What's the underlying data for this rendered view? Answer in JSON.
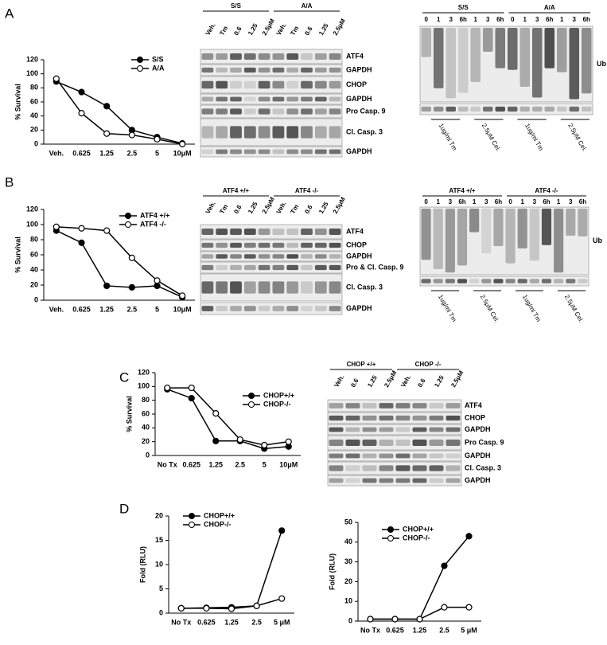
{
  "panel_labels": [
    "A",
    "B",
    "C",
    "D"
  ],
  "chart_data": [
    {
      "type": "line",
      "ylabel": "% Survival",
      "categories": [
        "Veh.",
        "0.625",
        "1.25",
        "2.5",
        "5",
        "10μM"
      ],
      "series": [
        {
          "name": "S/S",
          "color": "#000000",
          "marker_fill": "#000000",
          "values": [
            89,
            74,
            54,
            20,
            10,
            1
          ]
        },
        {
          "name": "A/A",
          "color": "#000000",
          "marker_fill": "#ffffff",
          "values": [
            93,
            44,
            15,
            13,
            7,
            0
          ]
        }
      ],
      "ylim": [
        0,
        120
      ],
      "yticks": [
        0,
        20,
        40,
        60,
        80,
        100,
        120
      ]
    },
    {
      "type": "line",
      "ylabel": "% Survival",
      "categories": [
        "Veh.",
        "0.625",
        "1.25",
        "2.5",
        "5",
        "10μM"
      ],
      "series": [
        {
          "name": "ATF4 +/+",
          "color": "#000000",
          "marker_fill": "#000000",
          "values": [
            92,
            76,
            19,
            17,
            19,
            4
          ]
        },
        {
          "name": "ATF4 -/-",
          "color": "#000000",
          "marker_fill": "#ffffff",
          "values": [
            97,
            95,
            92,
            56,
            26,
            6
          ]
        }
      ],
      "ylim": [
        0,
        120
      ],
      "yticks": [
        0,
        20,
        40,
        60,
        80,
        100,
        120
      ]
    },
    {
      "type": "line",
      "ylabel": "% Survival",
      "categories": [
        "No Tx",
        "0.625",
        "1.25",
        "2.5",
        "5",
        "10μM"
      ],
      "series": [
        {
          "name": "CHOP+/+",
          "color": "#000000",
          "marker_fill": "#000000",
          "values": [
            96,
            83,
            21,
            21,
            10,
            13
          ]
        },
        {
          "name": "CHOP-/-",
          "color": "#000000",
          "marker_fill": "#ffffff",
          "values": [
            98,
            98,
            61,
            23,
            15,
            20
          ]
        }
      ],
      "ylim": [
        0,
        120
      ],
      "yticks": [
        0,
        20,
        40,
        60,
        80,
        100,
        120
      ]
    },
    {
      "type": "line",
      "ylabel": "Fold (RLU)",
      "categories": [
        "No Tx",
        "0.625",
        "1.25",
        "2.5",
        "5 μM"
      ],
      "series": [
        {
          "name": "CHOP+/+",
          "color": "#000000",
          "marker_fill": "#000000",
          "values": [
            1,
            1.1,
            1.2,
            1.5,
            17
          ]
        },
        {
          "name": "CHOP-/-",
          "color": "#000000",
          "marker_fill": "#ffffff",
          "values": [
            1,
            1,
            0.9,
            1.5,
            3
          ]
        }
      ],
      "ylim": [
        0,
        20
      ],
      "yticks": [
        0,
        5,
        10,
        15,
        20
      ]
    },
    {
      "type": "line",
      "ylabel": "Fold (RLU)",
      "categories": [
        "No Tx",
        "0.625",
        "1.25",
        "2.5",
        "5 μM"
      ],
      "series": [
        {
          "name": "CHOP+/+",
          "color": "#000000",
          "marker_fill": "#000000",
          "values": [
            1,
            1,
            1,
            28,
            43
          ]
        },
        {
          "name": "CHOP-/-",
          "color": "#000000",
          "marker_fill": "#ffffff",
          "values": [
            1,
            1,
            1,
            7,
            7
          ]
        }
      ],
      "ylim": [
        0,
        50
      ],
      "yticks": [
        0,
        10,
        20,
        30,
        40,
        50
      ]
    }
  ],
  "blots": [
    {
      "groups": [
        "S/S",
        "A/A"
      ],
      "lanes": [
        [
          "Veh.",
          "Tm",
          "0.6",
          "1.25",
          "2.5μM"
        ],
        [
          "Veh.",
          "Tm",
          "0.6",
          "1.25",
          "2.5μM"
        ]
      ],
      "rows": [
        "ATF4",
        "GAPDH",
        "CHOP",
        "GAPDH",
        "Pro Casp. 9",
        "Cl. Casp. 3",
        "GAPDH"
      ]
    },
    {
      "groups": [
        "S/S",
        "A/A"
      ],
      "lanes": [
        [
          "0",
          "1",
          "3",
          "6h",
          "1",
          "3",
          "6h"
        ],
        [
          "0",
          "1",
          "3",
          "6h",
          "1",
          "3",
          "6h"
        ]
      ],
      "rows": [
        "Ub"
      ],
      "treatments": [
        "1ug/ml Tm",
        "2.5μM Cel.",
        "1ug/ml Tm",
        "2.5μM Cel."
      ]
    },
    {
      "groups": [
        "ATF4 +/+",
        "ATF4 -/-"
      ],
      "lanes": [
        [
          "Veh.",
          "Tm",
          "0.6",
          "1.25",
          "2.5μM"
        ],
        [
          "Veh.",
          "Tm",
          "0.6",
          "1.25",
          "2.5μM"
        ]
      ],
      "rows": [
        "ATF4",
        "CHOP",
        "GAPDH",
        "Pro & Cl. Casp. 9",
        "Cl. Casp. 3",
        "GAPDH"
      ]
    },
    {
      "groups": [
        "ATF4 +/+",
        "ATF4 -/-"
      ],
      "lanes": [
        [
          "0",
          "1",
          "3",
          "6h",
          "1",
          "3",
          "6h"
        ],
        [
          "0",
          "1",
          "3",
          "6h",
          "1",
          "3",
          "6h"
        ]
      ],
      "rows": [
        "Ub"
      ],
      "treatments": [
        "1ug/ml Tm",
        "2.5μM Cel.",
        "1ug/ml Tm",
        "2.5μM Cel."
      ]
    },
    {
      "groups": [
        "CHOP +/+",
        "CHOP -/-"
      ],
      "lanes": [
        [
          "Veh.",
          "0.6",
          "1.25",
          "2.5μM"
        ],
        [
          "Veh.",
          "0.6",
          "1.25",
          "2.5μM"
        ]
      ],
      "rows": [
        "ATF4",
        "CHOP",
        "GAPDH",
        "Pro Casp. 9",
        "GAPDH",
        "Cl. Casp. 3",
        "GAPDH"
      ]
    }
  ]
}
